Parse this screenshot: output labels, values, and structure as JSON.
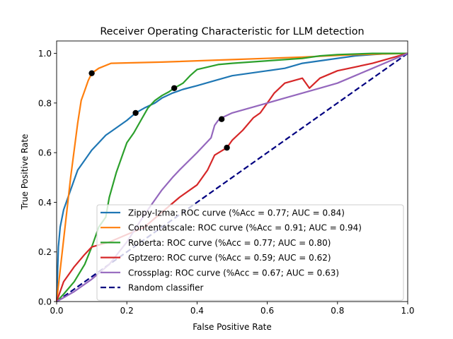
{
  "chart_data": {
    "type": "line",
    "title": "Receiver Operating Characteristic for LLM detection",
    "xlabel": "False Positive Rate",
    "ylabel": "True Positive Rate",
    "xlim": [
      0.0,
      1.0
    ],
    "ylim": [
      0.0,
      1.05
    ],
    "xticks": [
      "0.0",
      "0.2",
      "0.4",
      "0.6",
      "0.8",
      "1.0"
    ],
    "yticks": [
      "0.0",
      "0.2",
      "0.4",
      "0.6",
      "0.8",
      "1.0"
    ],
    "grid": false,
    "legend_position": "lower-right",
    "series": [
      {
        "name": "Zippy-lzma: ROC curve (%Acc = 0.77; AUC = 0.84)",
        "color": "#1f77b4",
        "x": [
          0.0,
          0.005,
          0.01,
          0.02,
          0.03,
          0.04,
          0.05,
          0.06,
          0.08,
          0.1,
          0.12,
          0.14,
          0.16,
          0.18,
          0.2,
          0.225,
          0.25,
          0.28,
          0.3,
          0.33,
          0.36,
          0.4,
          0.45,
          0.5,
          0.55,
          0.6,
          0.65,
          0.7,
          0.75,
          0.8,
          0.85,
          0.9,
          0.95,
          1.0
        ],
        "y": [
          0.0,
          0.22,
          0.3,
          0.37,
          0.41,
          0.45,
          0.49,
          0.53,
          0.57,
          0.61,
          0.64,
          0.67,
          0.69,
          0.71,
          0.73,
          0.76,
          0.78,
          0.8,
          0.82,
          0.84,
          0.855,
          0.87,
          0.89,
          0.91,
          0.92,
          0.93,
          0.94,
          0.96,
          0.97,
          0.98,
          0.99,
          0.995,
          1.0,
          1.0
        ],
        "marker": {
          "x": 0.225,
          "y": 0.76
        }
      },
      {
        "name": "Contentatscale: ROC curve (%Acc = 0.91; AUC = 0.94)",
        "color": "#ff7f0e",
        "x": [
          0.0,
          0.02,
          0.04,
          0.06,
          0.07,
          0.08,
          0.09,
          0.1,
          0.12,
          0.155,
          0.3,
          0.5,
          0.7,
          0.85,
          1.0
        ],
        "y": [
          0.0,
          0.25,
          0.5,
          0.72,
          0.81,
          0.85,
          0.89,
          0.92,
          0.94,
          0.96,
          0.965,
          0.975,
          0.985,
          0.995,
          1.0
        ],
        "marker": {
          "x": 0.1,
          "y": 0.92
        }
      },
      {
        "name": "Roberta: ROC curve (%Acc = 0.77; AUC = 0.80)",
        "color": "#2ca02c",
        "x": [
          0.0,
          0.02,
          0.05,
          0.08,
          0.1,
          0.12,
          0.14,
          0.15,
          0.17,
          0.19,
          0.2,
          0.22,
          0.24,
          0.26,
          0.28,
          0.3,
          0.32,
          0.335,
          0.36,
          0.38,
          0.4,
          0.43,
          0.46,
          0.5,
          0.55,
          0.6,
          0.65,
          0.7,
          0.75,
          0.8,
          0.9,
          1.0
        ],
        "y": [
          0.0,
          0.03,
          0.08,
          0.15,
          0.22,
          0.3,
          0.34,
          0.42,
          0.52,
          0.6,
          0.64,
          0.68,
          0.73,
          0.78,
          0.81,
          0.83,
          0.845,
          0.86,
          0.88,
          0.91,
          0.935,
          0.945,
          0.955,
          0.96,
          0.965,
          0.97,
          0.975,
          0.98,
          0.99,
          0.995,
          1.0,
          1.0
        ],
        "marker": {
          "x": 0.335,
          "y": 0.86
        }
      },
      {
        "name": "Gptzero: ROC curve (%Acc = 0.59; AUC = 0.62)",
        "color": "#d62728",
        "x": [
          0.0,
          0.02,
          0.05,
          0.08,
          0.1,
          0.15,
          0.2,
          0.25,
          0.3,
          0.35,
          0.4,
          0.43,
          0.45,
          0.485,
          0.5,
          0.53,
          0.56,
          0.58,
          0.6,
          0.62,
          0.65,
          0.7,
          0.72,
          0.75,
          0.8,
          0.9,
          1.0
        ],
        "y": [
          0.0,
          0.08,
          0.14,
          0.19,
          0.22,
          0.24,
          0.27,
          0.3,
          0.36,
          0.42,
          0.47,
          0.53,
          0.59,
          0.62,
          0.65,
          0.69,
          0.74,
          0.76,
          0.8,
          0.84,
          0.88,
          0.9,
          0.86,
          0.9,
          0.93,
          0.96,
          1.0
        ],
        "marker": {
          "x": 0.485,
          "y": 0.62
        }
      },
      {
        "name": "Crossplag: ROC curve (%Acc = 0.67; AUC = 0.63)",
        "color": "#9467bd",
        "x": [
          0.0,
          0.05,
          0.1,
          0.15,
          0.2,
          0.25,
          0.3,
          0.33,
          0.35,
          0.4,
          0.44,
          0.45,
          0.46,
          0.47,
          0.5,
          0.55,
          0.6,
          0.65,
          0.7,
          0.75,
          0.8,
          0.85,
          0.9,
          0.95,
          1.0
        ],
        "y": [
          0.0,
          0.04,
          0.09,
          0.15,
          0.24,
          0.35,
          0.45,
          0.5,
          0.53,
          0.6,
          0.66,
          0.71,
          0.73,
          0.74,
          0.76,
          0.78,
          0.8,
          0.82,
          0.84,
          0.86,
          0.88,
          0.91,
          0.94,
          0.97,
          1.0
        ],
        "marker": {
          "x": 0.47,
          "y": 0.735
        }
      },
      {
        "name": "Random classifier",
        "color": "#000080",
        "dashed": true,
        "x": [
          0.0,
          1.0
        ],
        "y": [
          0.0,
          1.0
        ]
      }
    ]
  }
}
